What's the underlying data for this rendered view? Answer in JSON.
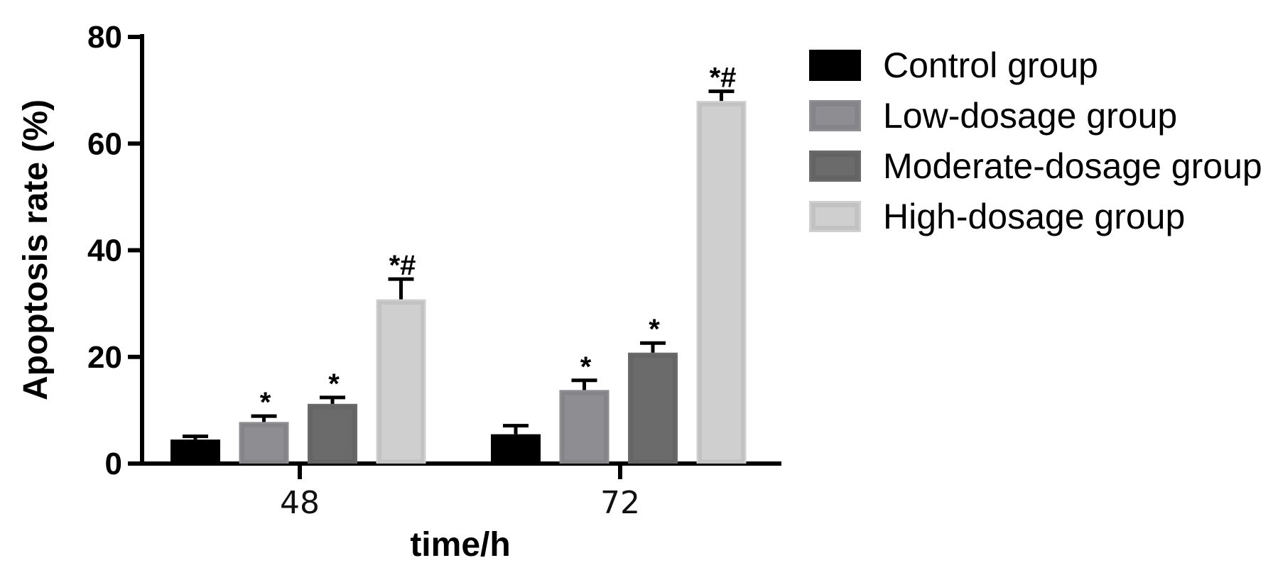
{
  "chart_data": {
    "type": "bar",
    "xlabel": "time/h",
    "ylabel": "Apoptosis rate (%)",
    "ylim": [
      0,
      80
    ],
    "yticks": [
      "0",
      "20",
      "40",
      "60",
      "80"
    ],
    "categories": [
      "48",
      "72"
    ],
    "series": [
      {
        "name": "Control group",
        "color": "#000000",
        "values": [
          4.5,
          5.5
        ],
        "errors": [
          0.6,
          1.6
        ],
        "sig": [
          "",
          ""
        ]
      },
      {
        "name": "Low-dosage group",
        "color": "#8e8e92",
        "values": [
          7.8,
          13.8
        ],
        "errors": [
          1.1,
          1.8
        ],
        "sig": [
          "*",
          "*"
        ]
      },
      {
        "name": "Moderate-dosage group",
        "color": "#6b6b6b",
        "values": [
          11.2,
          20.8
        ],
        "errors": [
          1.2,
          1.8
        ],
        "sig": [
          "*",
          "*"
        ]
      },
      {
        "name": "High-dosage group",
        "color": "#cfcfcf",
        "values": [
          30.8,
          68
        ],
        "errors": [
          3.8,
          1.8
        ],
        "sig": [
          "*#",
          "*#"
        ]
      }
    ],
    "grid": false,
    "legend_position": "top-right"
  }
}
